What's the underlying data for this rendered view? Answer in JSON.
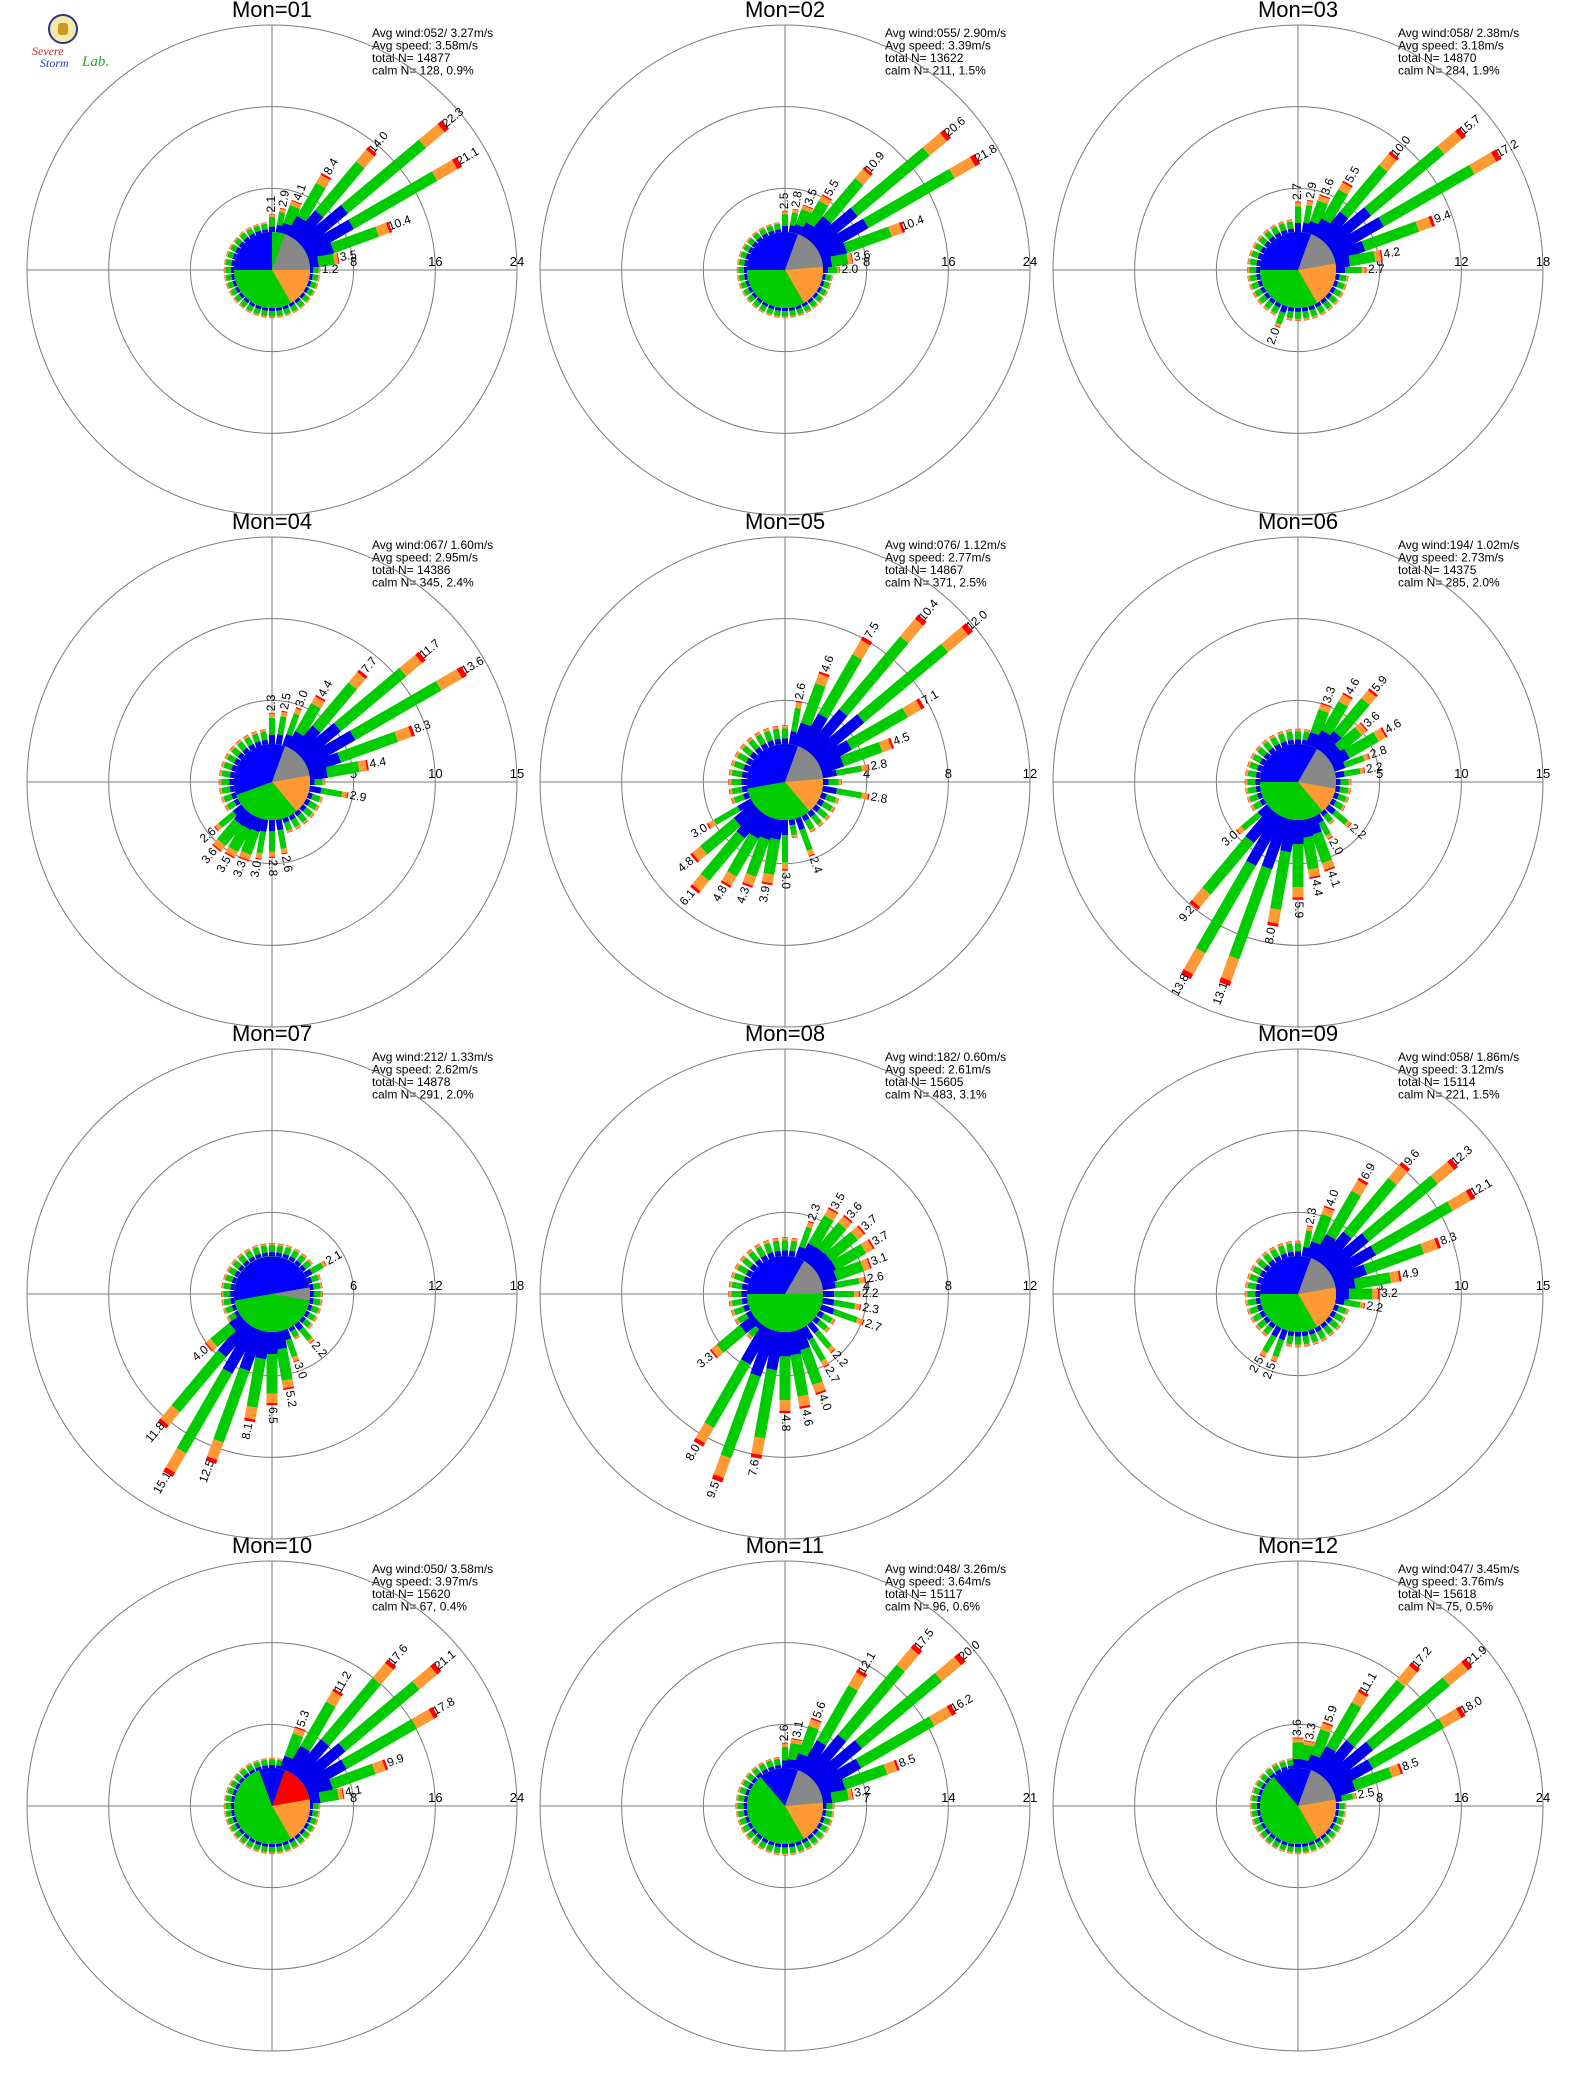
{
  "logo": {
    "line1": "Severe",
    "line2": "Storm",
    "line3": "Lab."
  },
  "colors": {
    "calm": "#00cc00",
    "bins": [
      "#0000ee",
      "#00cc00",
      "#ff9933",
      "#ff0000"
    ],
    "circle": "#7a7a7a",
    "grey_sector": "#888888"
  },
  "chart_data": [
    {
      "type": "rose",
      "title": "Mon=01",
      "stats": [
        "Avg wind:052/ 3.27m/s",
        "Avg speed: 3.58m/s",
        "total N=      14877",
        "calm N=    128,   0.9%"
      ],
      "rings": [
        8,
        16,
        24
      ],
      "rmax": 24,
      "pie": [
        [
          "#0000ff",
          270,
          360
        ],
        [
          "#888888",
          20,
          90
        ],
        [
          "#ff9933",
          90,
          150
        ],
        [
          "#00cc00",
          150,
          270
        ]
      ],
      "spokes": [
        [
          0,
          2.1
        ],
        [
          10,
          2.9
        ],
        [
          20,
          4.1
        ],
        [
          30,
          8.4
        ],
        [
          40,
          14.0
        ],
        [
          50,
          22.3
        ],
        [
          60,
          21.1
        ],
        [
          70,
          10.4
        ],
        [
          80,
          3.5
        ],
        [
          90,
          1.2
        ]
      ]
    },
    {
      "type": "rose",
      "title": "Mon=02",
      "stats": [
        "Avg wind:055/ 2.90m/s",
        "Avg speed: 3.39m/s",
        "total N=      13622",
        "calm N=    211,   1.5%"
      ],
      "rings": [
        8,
        16,
        24
      ],
      "rmax": 24,
      "pie": [
        [
          "#0000ff",
          270,
          380
        ],
        [
          "#888888",
          20,
          85
        ],
        [
          "#ff9933",
          85,
          150
        ],
        [
          "#00cc00",
          150,
          270
        ]
      ],
      "spokes": [
        [
          0,
          2.5
        ],
        [
          10,
          2.8
        ],
        [
          20,
          3.5
        ],
        [
          30,
          5.5
        ],
        [
          40,
          10.9
        ],
        [
          50,
          20.6
        ],
        [
          60,
          21.8
        ],
        [
          70,
          10.4
        ],
        [
          80,
          3.6
        ],
        [
          90,
          2.0
        ]
      ]
    },
    {
      "type": "rose",
      "title": "Mon=03",
      "stats": [
        "Avg wind:058/ 2.38m/s",
        "Avg speed: 3.18m/s",
        "total N=      14870",
        "calm N=    284,   1.9%"
      ],
      "rings": [
        6,
        12,
        18
      ],
      "rmax": 18,
      "pie": [
        [
          "#0000ff",
          270,
          380
        ],
        [
          "#888888",
          20,
          80
        ],
        [
          "#ff9933",
          80,
          150
        ],
        [
          "#00cc00",
          150,
          270
        ]
      ],
      "spokes": [
        [
          0,
          2.7
        ],
        [
          10,
          2.9
        ],
        [
          20,
          3.6
        ],
        [
          30,
          5.5
        ],
        [
          40,
          10.0
        ],
        [
          50,
          15.7
        ],
        [
          60,
          17.2
        ],
        [
          70,
          9.4
        ],
        [
          80,
          4.2
        ],
        [
          90,
          2.7
        ],
        [
          200,
          2.0
        ]
      ]
    },
    {
      "type": "rose",
      "title": "Mon=04",
      "stats": [
        "Avg wind:067/ 1.60m/s",
        "Avg speed: 2.95m/s",
        "total N=      14386",
        "calm N=    345,   2.4%"
      ],
      "rings": [
        5,
        10,
        15
      ],
      "rmax": 15,
      "pie": [
        [
          "#0000ff",
          250,
          380
        ],
        [
          "#888888",
          20,
          80
        ],
        [
          "#ff9933",
          80,
          140
        ],
        [
          "#00cc00",
          140,
          250
        ]
      ],
      "spokes": [
        [
          0,
          2.3
        ],
        [
          10,
          2.5
        ],
        [
          20,
          3.0
        ],
        [
          30,
          4.4
        ],
        [
          40,
          7.7
        ],
        [
          50,
          11.7
        ],
        [
          60,
          13.6
        ],
        [
          70,
          8.3
        ],
        [
          80,
          4.4
        ],
        [
          100,
          2.9
        ],
        [
          170,
          2.6
        ],
        [
          180,
          2.8
        ],
        [
          190,
          3.0
        ],
        [
          200,
          3.3
        ],
        [
          210,
          3.5
        ],
        [
          220,
          3.6
        ],
        [
          230,
          2.6
        ]
      ]
    },
    {
      "type": "rose",
      "title": "Mon=05",
      "stats": [
        "Avg wind:076/ 1.12m/s",
        "Avg speed: 2.77m/s",
        "total N=      14867",
        "calm N=    371,   2.5%"
      ],
      "rings": [
        4,
        8,
        12
      ],
      "rmax": 12,
      "pie": [
        [
          "#0000ff",
          260,
          380
        ],
        [
          "#888888",
          20,
          85
        ],
        [
          "#ff9933",
          85,
          140
        ],
        [
          "#00cc00",
          140,
          260
        ]
      ],
      "spokes": [
        [
          10,
          2.6
        ],
        [
          20,
          4.6
        ],
        [
          30,
          7.5
        ],
        [
          40,
          10.4
        ],
        [
          50,
          12.0
        ],
        [
          60,
          7.1
        ],
        [
          70,
          4.5
        ],
        [
          80,
          2.8
        ],
        [
          100,
          2.8
        ],
        [
          160,
          2.4
        ],
        [
          180,
          3.0
        ],
        [
          190,
          3.9
        ],
        [
          200,
          4.3
        ],
        [
          210,
          4.8
        ],
        [
          220,
          6.1
        ],
        [
          230,
          4.8
        ],
        [
          240,
          3.0
        ]
      ]
    },
    {
      "type": "rose",
      "title": "Mon=06",
      "stats": [
        "Avg wind:194/ 1.02m/s",
        "Avg speed: 2.73m/s",
        "total N=      14375",
        "calm N=    285,   2.0%"
      ],
      "rings": [
        5,
        10,
        15
      ],
      "rmax": 15,
      "pie": [
        [
          "#0000ff",
          270,
          390
        ],
        [
          "#888888",
          30,
          100
        ],
        [
          "#ff9933",
          100,
          140
        ],
        [
          "#00cc00",
          140,
          270
        ]
      ],
      "spokes": [
        [
          20,
          3.3
        ],
        [
          30,
          4.6
        ],
        [
          40,
          5.9
        ],
        [
          50,
          3.6
        ],
        [
          60,
          4.6
        ],
        [
          70,
          2.8
        ],
        [
          80,
          2.2
        ],
        [
          130,
          2.2
        ],
        [
          150,
          2.0
        ],
        [
          160,
          4.1
        ],
        [
          170,
          4.4
        ],
        [
          180,
          5.9
        ],
        [
          190,
          8.0
        ],
        [
          200,
          13.1
        ],
        [
          210,
          13.8
        ],
        [
          220,
          9.2
        ],
        [
          230,
          3.0
        ]
      ]
    },
    {
      "type": "rose",
      "title": "Mon=07",
      "stats": [
        "Avg wind:212/ 1.33m/s",
        "Avg speed: 2.62m/s",
        "total N=      14878",
        "calm N=    291,   2.0%"
      ],
      "rings": [
        6,
        12,
        18
      ],
      "rmax": 18,
      "pie": [
        [
          "#0000ff",
          260,
          440
        ],
        [
          "#888888",
          80,
          100
        ],
        [
          "#00cc00",
          100,
          260
        ]
      ],
      "spokes": [
        [
          60,
          2.1
        ],
        [
          140,
          2.2
        ],
        [
          160,
          3.0
        ],
        [
          170,
          5.2
        ],
        [
          180,
          6.5
        ],
        [
          190,
          8.1
        ],
        [
          200,
          12.5
        ],
        [
          210,
          15.1
        ],
        [
          220,
          11.8
        ],
        [
          230,
          4.0
        ]
      ]
    },
    {
      "type": "rose",
      "title": "Mon=08",
      "stats": [
        "Avg wind:182/ 0.60m/s",
        "Avg speed: 2.61m/s",
        "total N=      15605",
        "calm N=    483,   3.1%"
      ],
      "rings": [
        4,
        8,
        12
      ],
      "rmax": 12,
      "pie": [
        [
          "#0000ff",
          270,
          390
        ],
        [
          "#888888",
          30,
          90
        ],
        [
          "#00cc00",
          90,
          270
        ]
      ],
      "spokes": [
        [
          20,
          2.3
        ],
        [
          30,
          3.5
        ],
        [
          40,
          3.6
        ],
        [
          50,
          3.7
        ],
        [
          60,
          3.7
        ],
        [
          70,
          3.1
        ],
        [
          80,
          2.6
        ],
        [
          90,
          2.2
        ],
        [
          100,
          2.3
        ],
        [
          110,
          2.7
        ],
        [
          140,
          2.2
        ],
        [
          150,
          2.7
        ],
        [
          160,
          4.0
        ],
        [
          170,
          4.6
        ],
        [
          180,
          4.8
        ],
        [
          190,
          7.6
        ],
        [
          200,
          9.5
        ],
        [
          210,
          8.0
        ],
        [
          230,
          3.3
        ]
      ]
    },
    {
      "type": "rose",
      "title": "Mon=09",
      "stats": [
        "Avg wind:058/ 1.86m/s",
        "Avg speed: 3.12m/s",
        "total N=      15114",
        "calm N=    221,   1.5%"
      ],
      "rings": [
        5,
        10,
        15
      ],
      "rmax": 15,
      "pie": [
        [
          "#0000ff",
          270,
          380
        ],
        [
          "#888888",
          20,
          80
        ],
        [
          "#ff9933",
          80,
          150
        ],
        [
          "#00cc00",
          150,
          270
        ]
      ],
      "spokes": [
        [
          10,
          2.3
        ],
        [
          20,
          4.0
        ],
        [
          30,
          6.9
        ],
        [
          40,
          9.6
        ],
        [
          50,
          12.3
        ],
        [
          60,
          12.1
        ],
        [
          70,
          8.3
        ],
        [
          80,
          4.9
        ],
        [
          90,
          3.2
        ],
        [
          100,
          2.2
        ],
        [
          200,
          2.5
        ],
        [
          210,
          2.5
        ]
      ]
    },
    {
      "type": "rose",
      "title": "Mon=10",
      "stats": [
        "Avg wind:050/ 3.58m/s",
        "Avg speed: 3.97m/s",
        "total N=      15620",
        "calm N=     67,   0.4%"
      ],
      "rings": [
        8,
        16,
        24
      ],
      "rmax": 24,
      "pie": [
        [
          "#0000ff",
          340,
          380
        ],
        [
          "#ff0000",
          20,
          80
        ],
        [
          "#ff9933",
          80,
          150
        ],
        [
          "#00cc00",
          150,
          340
        ]
      ],
      "spokes": [
        [
          20,
          5.3
        ],
        [
          30,
          11.2
        ],
        [
          40,
          17.6
        ],
        [
          50,
          21.1
        ],
        [
          60,
          17.8
        ],
        [
          70,
          9.9
        ],
        [
          80,
          4.1
        ]
      ]
    },
    {
      "type": "rose",
      "title": "Mon=11",
      "stats": [
        "Avg wind:048/ 3.26m/s",
        "Avg speed: 3.64m/s",
        "total N=      15117",
        "calm N=     96,   0.6%"
      ],
      "rings": [
        7,
        14,
        21
      ],
      "rmax": 21,
      "pie": [
        [
          "#0000ff",
          320,
          380
        ],
        [
          "#888888",
          20,
          85
        ],
        [
          "#ff9933",
          85,
          150
        ],
        [
          "#00cc00",
          150,
          320
        ]
      ],
      "spokes": [
        [
          0,
          2.6
        ],
        [
          10,
          3.1
        ],
        [
          20,
          5.6
        ],
        [
          30,
          12.1
        ],
        [
          40,
          17.5
        ],
        [
          50,
          20.0
        ],
        [
          60,
          16.2
        ],
        [
          70,
          8.5
        ],
        [
          80,
          3.2
        ]
      ]
    },
    {
      "type": "rose",
      "title": "Mon=12",
      "stats": [
        "Avg wind:047/ 3.45m/s",
        "Avg speed: 3.76m/s",
        "total N=      15618",
        "calm N=     75,   0.5%"
      ],
      "rings": [
        8,
        16,
        24
      ],
      "rmax": 24,
      "pie": [
        [
          "#0000ff",
          320,
          380
        ],
        [
          "#888888",
          20,
          80
        ],
        [
          "#ff9933",
          80,
          150
        ],
        [
          "#00cc00",
          150,
          320
        ]
      ],
      "spokes": [
        [
          0,
          3.6
        ],
        [
          10,
          3.3
        ],
        [
          20,
          5.9
        ],
        [
          30,
          11.1
        ],
        [
          40,
          17.2
        ],
        [
          50,
          21.9
        ],
        [
          60,
          18.0
        ],
        [
          70,
          8.5
        ],
        [
          80,
          2.5
        ]
      ]
    }
  ]
}
